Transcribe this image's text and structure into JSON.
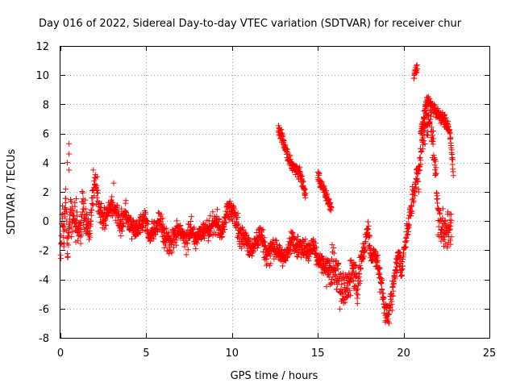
{
  "chart_data": {
    "type": "scatter",
    "title": "Day 016 of 2022, Sidereal Day-to-day VTEC variation (SDTVAR) for receiver chur",
    "xlabel": "GPS time / hours",
    "ylabel": "SDTVAR / TECUs",
    "xlim": [
      0,
      25
    ],
    "ylim": [
      -8,
      12
    ],
    "xticks": [
      0,
      5,
      10,
      15,
      20,
      25
    ],
    "yticks": [
      -8,
      -6,
      -4,
      -2,
      0,
      2,
      4,
      6,
      8,
      10,
      12
    ],
    "grid": true,
    "marker": "+",
    "series": [
      {
        "name": "SDTVAR",
        "color": "#ff0000",
        "trend": [
          [
            0.0,
            -2.3
          ],
          [
            0.1,
            0.2
          ],
          [
            0.2,
            -1.6
          ],
          [
            0.3,
            1.5
          ],
          [
            0.4,
            -1.8
          ],
          [
            0.5,
            -0.5
          ],
          [
            0.6,
            0.5
          ],
          [
            0.9,
            -0.2
          ],
          [
            1.1,
            -0.9
          ],
          [
            1.3,
            0.6
          ],
          [
            1.5,
            0.0
          ],
          [
            1.7,
            -0.9
          ],
          [
            1.8,
            1.0
          ],
          [
            2.0,
            2.8
          ],
          [
            2.3,
            0.6
          ],
          [
            2.6,
            0.2
          ],
          [
            2.9,
            1.1
          ],
          [
            3.2,
            0.8
          ],
          [
            3.5,
            -0.2
          ],
          [
            3.8,
            0.5
          ],
          [
            4.0,
            -0.2
          ],
          [
            4.3,
            -0.8
          ],
          [
            4.6,
            -0.3
          ],
          [
            4.9,
            0.1
          ],
          [
            5.2,
            -1.0
          ],
          [
            5.5,
            -0.5
          ],
          [
            5.8,
            0.0
          ],
          [
            6.1,
            -1.2
          ],
          [
            6.4,
            -1.6
          ],
          [
            6.7,
            -0.8
          ],
          [
            7.0,
            -0.9
          ],
          [
            7.3,
            -1.3
          ],
          [
            7.6,
            -0.4
          ],
          [
            7.9,
            -1.4
          ],
          [
            8.2,
            -0.8
          ],
          [
            8.5,
            -0.5
          ],
          [
            8.8,
            -0.3
          ],
          [
            9.1,
            -0.1
          ],
          [
            9.4,
            -0.9
          ],
          [
            9.7,
            0.5
          ],
          [
            10.0,
            1.0
          ],
          [
            10.2,
            0.0
          ],
          [
            10.5,
            -1.0
          ],
          [
            10.8,
            -1.3
          ],
          [
            11.1,
            -2.0
          ],
          [
            11.4,
            -1.5
          ],
          [
            11.7,
            -0.8
          ],
          [
            12.0,
            -2.4
          ],
          [
            12.3,
            -1.8
          ],
          [
            12.6,
            -2.0
          ],
          [
            12.9,
            -2.4
          ],
          [
            13.2,
            -2.2
          ],
          [
            13.5,
            -1.3
          ],
          [
            13.8,
            -1.9
          ],
          [
            14.1,
            -1.8
          ],
          [
            14.4,
            -2.2
          ],
          [
            14.7,
            -1.6
          ],
          [
            15.0,
            -2.6
          ],
          [
            15.3,
            -2.9
          ],
          [
            15.6,
            -3.4
          ],
          [
            15.9,
            -3.0
          ],
          [
            16.2,
            -4.1
          ],
          [
            16.5,
            -4.7
          ],
          [
            16.8,
            -4.3
          ],
          [
            17.1,
            -3.4
          ],
          [
            17.3,
            -4.8
          ],
          [
            17.5,
            -2.9
          ],
          [
            17.7,
            -1.9
          ],
          [
            17.9,
            -0.6
          ],
          [
            18.1,
            -2.6
          ],
          [
            18.3,
            -2.2
          ],
          [
            18.5,
            -3.2
          ],
          [
            18.7,
            -4.4
          ],
          [
            18.9,
            -6.0
          ],
          [
            19.1,
            -6.4
          ],
          [
            19.3,
            -5.2
          ],
          [
            19.5,
            -3.6
          ],
          [
            19.7,
            -2.4
          ],
          [
            19.9,
            -3.3
          ],
          [
            20.1,
            -1.4
          ],
          [
            20.3,
            -0.2
          ],
          [
            20.5,
            1.5
          ],
          [
            20.7,
            2.6
          ],
          [
            20.9,
            3.5
          ],
          [
            21.1,
            5.6
          ],
          [
            21.3,
            6.5
          ],
          [
            21.5,
            7.2
          ],
          [
            21.7,
            5.2
          ],
          [
            21.9,
            2.9
          ],
          [
            22.0,
            0.5
          ],
          [
            22.2,
            -0.8
          ],
          [
            22.4,
            -0.9
          ],
          [
            22.6,
            -0.7
          ],
          [
            22.8,
            -0.3
          ]
        ],
        "segments": [
          [
            [
              12.7,
              6.3
            ],
            [
              13.0,
              5.5
            ],
            [
              13.3,
              4.2
            ],
            [
              13.6,
              3.6
            ],
            [
              13.9,
              3.4
            ],
            [
              14.1,
              2.6
            ],
            [
              14.3,
              1.8
            ]
          ],
          [
            [
              15.0,
              3.2
            ],
            [
              15.2,
              2.6
            ],
            [
              15.4,
              2.0
            ],
            [
              15.6,
              1.4
            ],
            [
              15.8,
              0.7
            ]
          ],
          [
            [
              20.6,
              9.8
            ],
            [
              20.7,
              10.4
            ],
            [
              20.8,
              10.5
            ]
          ],
          [
            [
              21.0,
              6.0
            ],
            [
              21.3,
              8.0
            ],
            [
              21.5,
              8.3
            ],
            [
              21.8,
              7.6
            ],
            [
              22.1,
              7.2
            ],
            [
              22.4,
              6.9
            ],
            [
              22.7,
              6.0
            ],
            [
              22.9,
              3.3
            ]
          ]
        ],
        "isolated_points": [
          [
            0.5,
            5.3
          ],
          [
            0.5,
            4.6
          ],
          [
            0.4,
            4.0
          ],
          [
            0.5,
            3.5
          ],
          [
            0.3,
            2.2
          ],
          [
            3.1,
            2.6
          ]
        ]
      }
    ]
  }
}
